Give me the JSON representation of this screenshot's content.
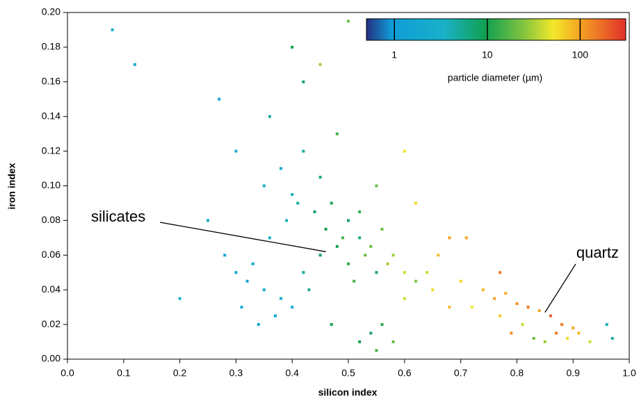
{
  "chart_data": {
    "type": "scatter",
    "xlabel": "silicon index",
    "ylabel": "iron index",
    "xlim": [
      0,
      1
    ],
    "ylim": [
      0,
      0.2
    ],
    "xticks": [
      {
        "value": 0,
        "label": "0.0"
      },
      0.1,
      0.2,
      0.3,
      0.4,
      0.5,
      0.6,
      0.7,
      0.8,
      0.9,
      {
        "value": 1,
        "label": "1.0"
      }
    ],
    "yticks": [
      {
        "value": 0,
        "label": "0.00"
      },
      0.02,
      0.04,
      0.06,
      0.08,
      {
        "value": 0.1,
        "label": "0.10"
      },
      0.12,
      0.14,
      0.16,
      0.18,
      {
        "value": 0.2,
        "label": "0.20"
      }
    ],
    "colorbar": {
      "label": "particle diameter (µm)",
      "log": true,
      "lim": [
        0.5,
        310
      ],
      "ticks": [
        1,
        10,
        100
      ]
    },
    "annotations": [
      {
        "text": "silicates",
        "x": 0.46,
        "y": 0.062
      },
      {
        "text": "quartz",
        "x": 0.85,
        "y": 0.027
      }
    ],
    "x": [
      0.3,
      0.32,
      0.35,
      0.38,
      0.4,
      0.42,
      0.45,
      0.48,
      0.5,
      0.52,
      0.28,
      0.33,
      0.36,
      0.39,
      0.41,
      0.44,
      0.46,
      0.49,
      0.53,
      0.55,
      0.31,
      0.34,
      0.37,
      0.43,
      0.47,
      0.51,
      0.54,
      0.57,
      0.6,
      0.62,
      0.35,
      0.38,
      0.4,
      0.42,
      0.45,
      0.47,
      0.5,
      0.52,
      0.56,
      0.58,
      0.7,
      0.74,
      0.76,
      0.78,
      0.8,
      0.82,
      0.84,
      0.86,
      0.88,
      0.9,
      0.72,
      0.77,
      0.79,
      0.81,
      0.83,
      0.85,
      0.87,
      0.89,
      0.91,
      0.93,
      0.25,
      0.3,
      0.36,
      0.42,
      0.48,
      0.55,
      0.62,
      0.66,
      0.68,
      0.64,
      0.2,
      0.27,
      0.4,
      0.45,
      0.5,
      0.6,
      0.71,
      0.77,
      0.12,
      0.08,
      0.52,
      0.55,
      0.58,
      0.54,
      0.56,
      0.6,
      0.65,
      0.68,
      0.96,
      0.97
    ],
    "values": [
      0.05,
      0.045,
      0.04,
      0.035,
      0.03,
      0.05,
      0.06,
      0.065,
      0.055,
      0.07,
      0.06,
      0.055,
      0.07,
      0.08,
      0.09,
      0.085,
      0.075,
      0.07,
      0.06,
      0.05,
      0.03,
      0.02,
      0.025,
      0.04,
      0.02,
      0.045,
      0.065,
      0.055,
      0.05,
      0.045,
      0.1,
      0.11,
      0.095,
      0.12,
      0.105,
      0.09,
      0.08,
      0.085,
      0.075,
      0.06,
      0.045,
      0.04,
      0.035,
      0.038,
      0.032,
      0.03,
      0.028,
      0.025,
      0.02,
      0.018,
      0.03,
      0.025,
      0.015,
      0.02,
      0.012,
      0.01,
      0.015,
      0.012,
      0.015,
      0.01,
      0.08,
      0.12,
      0.14,
      0.16,
      0.13,
      0.1,
      0.09,
      0.06,
      0.07,
      0.05,
      0.035,
      0.15,
      0.18,
      0.17,
      0.195,
      0.12,
      0.07,
      0.05,
      0.17,
      0.19,
      0.01,
      0.005,
      0.01,
      0.015,
      0.02,
      0.035,
      0.04,
      0.03,
      0.02,
      0.012
    ],
    "diameters": [
      2,
      1.5,
      2,
      3,
      2.5,
      5,
      8,
      10,
      12,
      6,
      1.2,
      2,
      3,
      4,
      5,
      8,
      10,
      15,
      20,
      8,
      2,
      1.5,
      2,
      6,
      10,
      15,
      20,
      30,
      40,
      25,
      3,
      2,
      4,
      5,
      6,
      10,
      8,
      12,
      20,
      30,
      60,
      80,
      100,
      90,
      120,
      150,
      100,
      200,
      150,
      100,
      50,
      70,
      120,
      40,
      20,
      30,
      150,
      60,
      80,
      40,
      2,
      3,
      5,
      8,
      15,
      20,
      60,
      80,
      100,
      40,
      3,
      2,
      10,
      30,
      20,
      50,
      100,
      150,
      2,
      3,
      10,
      15,
      20,
      8,
      12,
      40,
      60,
      80,
      4,
      5
    ]
  }
}
